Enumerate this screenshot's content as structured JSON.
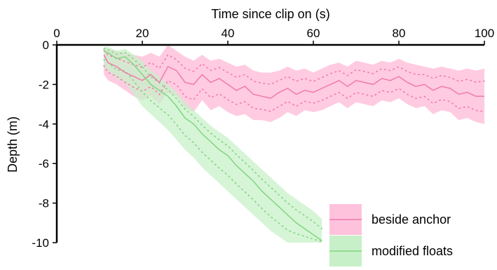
{
  "chart_data": {
    "type": "line",
    "title": "",
    "xlabel": "Time since clip on (s)",
    "ylabel": "Depth (m)",
    "xlim": [
      0,
      100
    ],
    "ylim": [
      -10,
      0
    ],
    "x_ticks": [
      "0",
      "20",
      "40",
      "60",
      "80",
      "100"
    ],
    "y_ticks": [
      "0",
      "-2",
      "-4",
      "-6",
      "-8",
      "-10"
    ],
    "x_axis_position": "top",
    "grid": false,
    "legend_position": "bottom-right",
    "series": [
      {
        "name": "beside anchor",
        "color": "#f07aac",
        "band_color": "#ffc2dc",
        "x": [
          11,
          12,
          14,
          16,
          18,
          20,
          22,
          24,
          26,
          28,
          30,
          32,
          34,
          36,
          38,
          40,
          42,
          44,
          46,
          48,
          50,
          52,
          54,
          56,
          58,
          60,
          62,
          64,
          66,
          68,
          70,
          72,
          74,
          76,
          78,
          80,
          82,
          84,
          86,
          88,
          90,
          92,
          94,
          96,
          98,
          100
        ],
        "y": [
          -0.5,
          -0.9,
          -1.1,
          -1.4,
          -1.6,
          -1.8,
          -1.5,
          -1.9,
          -1.1,
          -1.3,
          -1.9,
          -2.0,
          -1.5,
          -1.9,
          -1.7,
          -2.0,
          -2.3,
          -2.1,
          -2.5,
          -2.6,
          -2.7,
          -2.4,
          -2.2,
          -2.5,
          -2.3,
          -2.4,
          -2.2,
          -2.0,
          -1.8,
          -2.1,
          -1.8,
          -1.9,
          -2.0,
          -1.7,
          -1.8,
          -1.6,
          -1.9,
          -2.1,
          -2.0,
          -2.3,
          -2.1,
          -2.2,
          -2.5,
          -2.4,
          -2.6,
          -2.6
        ],
        "upper": [
          -0.1,
          -0.2,
          -0.3,
          -0.4,
          -0.5,
          -0.6,
          -0.4,
          -0.6,
          0.0,
          -0.3,
          -0.6,
          -0.8,
          -0.5,
          -0.8,
          -0.7,
          -0.9,
          -1.1,
          -1.0,
          -1.3,
          -1.4,
          -1.4,
          -1.3,
          -1.1,
          -1.3,
          -1.2,
          -1.4,
          -1.2,
          -1.0,
          -0.9,
          -1.1,
          -0.8,
          -0.9,
          -1.0,
          -0.8,
          -0.9,
          -0.7,
          -0.9,
          -1.0,
          -1.1,
          -1.2,
          -1.1,
          -1.2,
          -1.3,
          -1.2,
          -1.3,
          -1.2
        ],
        "lower": [
          -1.5,
          -1.8,
          -2.0,
          -2.3,
          -2.6,
          -2.8,
          -2.6,
          -3.0,
          -2.4,
          -2.6,
          -3.2,
          -3.4,
          -2.8,
          -3.3,
          -3.1,
          -3.4,
          -3.6,
          -3.5,
          -3.8,
          -3.8,
          -3.9,
          -3.7,
          -3.4,
          -3.6,
          -3.3,
          -3.4,
          -3.3,
          -3.1,
          -2.9,
          -3.2,
          -2.9,
          -3.0,
          -3.1,
          -2.8,
          -2.9,
          -2.7,
          -3.0,
          -3.2,
          -3.1,
          -3.5,
          -3.3,
          -3.4,
          -3.8,
          -3.7,
          -3.9,
          -4.0
        ]
      },
      {
        "name": "modified floats",
        "color": "#7fd67f",
        "band_color": "#c8f0c8",
        "x": [
          11,
          12,
          14,
          16,
          18,
          20,
          22,
          24,
          26,
          28,
          30,
          32,
          34,
          36,
          38,
          40,
          42,
          44,
          46,
          48,
          50,
          52,
          54,
          56,
          58,
          60,
          62
        ],
        "y": [
          -0.3,
          -0.4,
          -0.7,
          -0.6,
          -1.0,
          -1.5,
          -2.0,
          -2.3,
          -2.6,
          -3.1,
          -3.7,
          -4.0,
          -4.5,
          -4.9,
          -5.3,
          -5.6,
          -6.1,
          -6.5,
          -6.9,
          -7.4,
          -7.8,
          -8.2,
          -8.6,
          -9.0,
          -9.3,
          -9.6,
          -9.9
        ],
        "upper": [
          -0.1,
          -0.1,
          -0.3,
          -0.2,
          -0.5,
          -0.8,
          -1.3,
          -1.6,
          -2.0,
          -2.4,
          -2.9,
          -3.3,
          -3.7,
          -4.1,
          -4.4,
          -4.7,
          -5.1,
          -5.5,
          -5.9,
          -6.3,
          -6.7,
          -7.1,
          -7.5,
          -7.8,
          -8.1,
          -8.4,
          -8.8
        ],
        "lower": [
          -1.1,
          -1.3,
          -1.7,
          -1.9,
          -2.5,
          -3.1,
          -3.5,
          -3.9,
          -4.3,
          -4.8,
          -5.3,
          -5.7,
          -6.2,
          -6.6,
          -7.0,
          -7.4,
          -7.8,
          -8.2,
          -8.6,
          -9.0,
          -9.4,
          -9.7,
          -10.0,
          -10.0,
          -10.0,
          -10.0,
          -10.0
        ]
      }
    ]
  }
}
